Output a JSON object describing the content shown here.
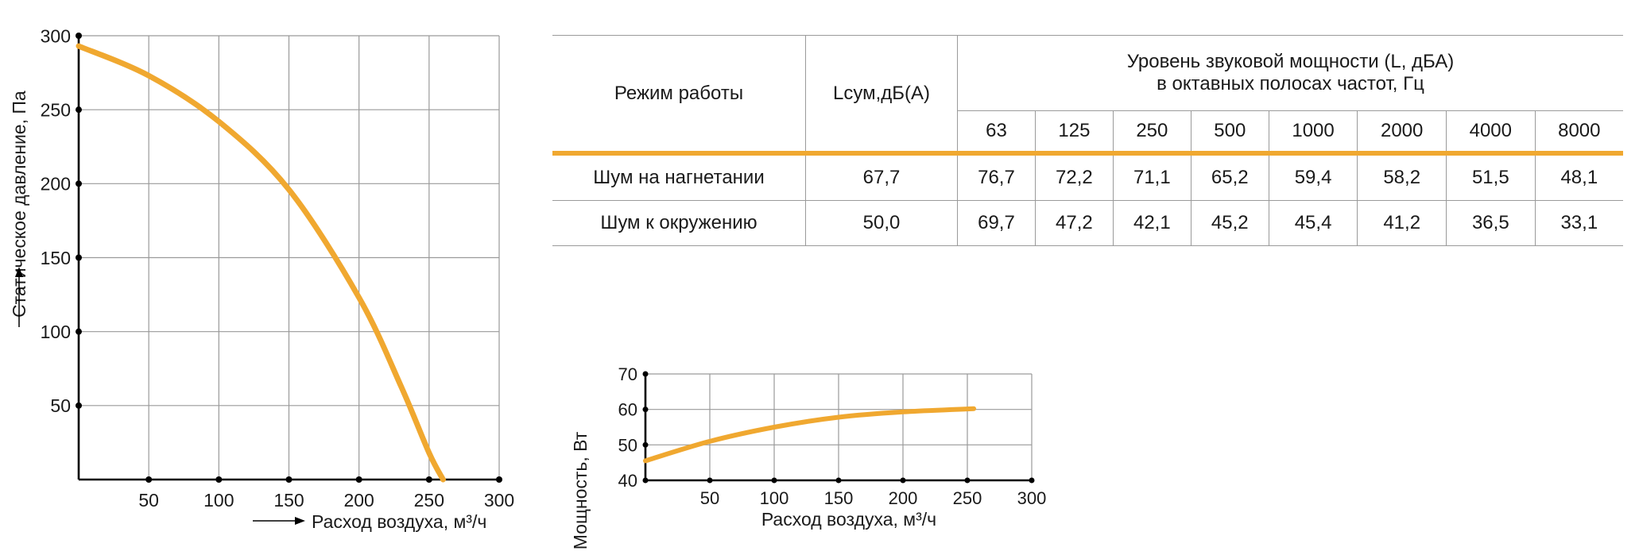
{
  "chart_data": [
    {
      "type": "line",
      "xlabel": "Расход воздуха, м³/ч",
      "ylabel": "Статическое давление, Па",
      "xlim": [
        0,
        300
      ],
      "ylim": [
        0,
        300
      ],
      "xticks": [
        50,
        100,
        150,
        200,
        250,
        300
      ],
      "yticks": [
        50,
        100,
        150,
        200,
        250,
        300
      ],
      "grid": true,
      "series": [
        {
          "x": [
            0,
            50,
            100,
            150,
            200,
            230,
            250,
            260
          ],
          "values": [
            293,
            273,
            242,
            196,
            123,
            63,
            18,
            0
          ]
        }
      ],
      "color": "#f0a830"
    },
    {
      "type": "line",
      "xlabel": "Расход воздуха, м³/ч",
      "ylabel": "Мощность, Вт",
      "xlim": [
        0,
        300
      ],
      "ylim": [
        40,
        70
      ],
      "xticks": [
        50,
        100,
        150,
        200,
        250,
        300
      ],
      "yticks": [
        40,
        50,
        60,
        70
      ],
      "grid": true,
      "series": [
        {
          "x": [
            0,
            50,
            100,
            150,
            200,
            255
          ],
          "values": [
            45.5,
            51,
            55,
            57.8,
            59.3,
            60.2
          ]
        }
      ],
      "color": "#f0a830"
    },
    {
      "type": "table",
      "headers": {
        "mode": "Режим работы",
        "lsum": "Lсум,дБ(А)",
        "group": "Уровень звуковой мощности (L, дБА)",
        "group_sub": "в октавных полосах частот, Гц",
        "bands": [
          "63",
          "125",
          "250",
          "500",
          "1000",
          "2000",
          "4000",
          "8000"
        ]
      },
      "rows": [
        {
          "mode": "Шум на нагнетании",
          "lsum": "67,7",
          "values": [
            "76,7",
            "72,2",
            "71,1",
            "65,2",
            "59,4",
            "58,2",
            "51,5",
            "48,1"
          ]
        },
        {
          "mode": "Шум к окружению",
          "lsum": "50,0",
          "values": [
            "69,7",
            "47,2",
            "42,1",
            "45,2",
            "45,4",
            "41,2",
            "36,5",
            "33,1"
          ]
        }
      ]
    }
  ],
  "colors": {
    "accent": "#f0a830",
    "grid": "#9a9a9a",
    "axis": "#000000"
  },
  "icons": {
    "y_arrow": "arrow-up-icon",
    "x_arrow": "arrow-right-icon"
  }
}
